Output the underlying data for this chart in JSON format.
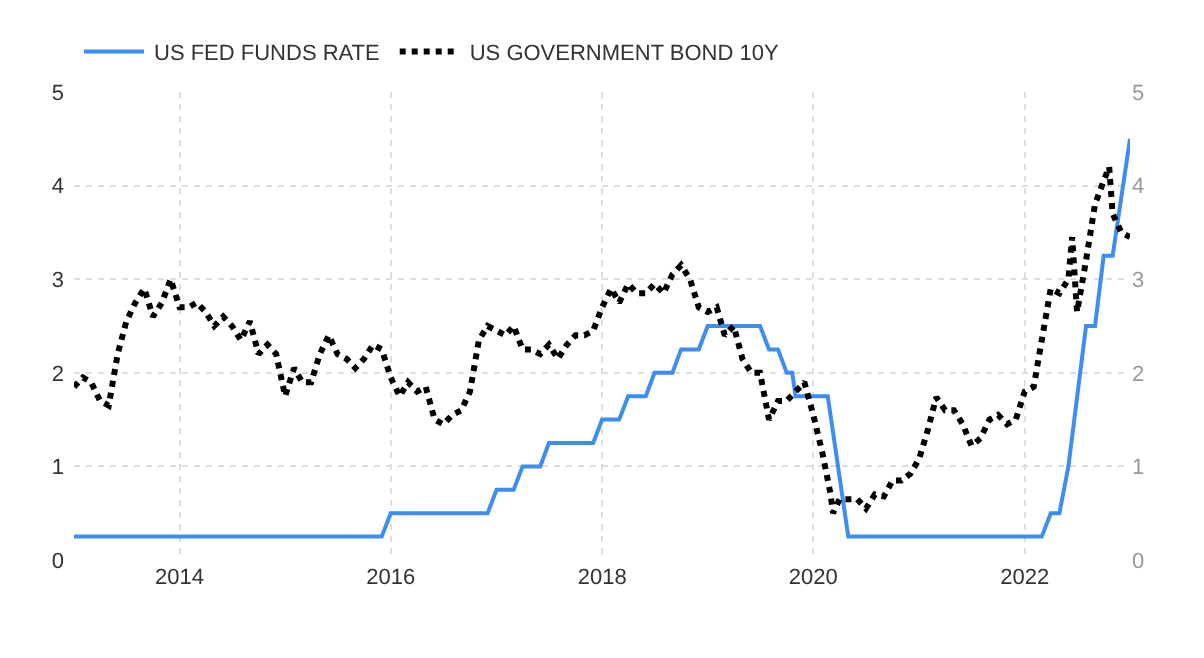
{
  "chart_data": {
    "type": "line",
    "xlim": [
      "2013-01-01",
      "2022-12-31"
    ],
    "xticks": [
      "2014",
      "2016",
      "2018",
      "2020",
      "2022"
    ],
    "ylim": [
      0,
      5
    ],
    "yticks": [
      0,
      1,
      2,
      3,
      4,
      5
    ],
    "y2lim": [
      0,
      5
    ],
    "y2ticks": [
      0,
      1,
      2,
      3,
      4,
      5
    ],
    "grid": true,
    "legend": "top left",
    "marker": "none",
    "series": [
      {
        "name": "US FED FUNDS RATE",
        "color": "#3d8ef0",
        "line_style": "solid",
        "x": [
          "2013-01-01",
          "2015-12-01",
          "2016-01-01",
          "2016-12-01",
          "2017-01-01",
          "2017-03-01",
          "2017-04-01",
          "2017-06-01",
          "2017-07-01",
          "2017-12-01",
          "2018-01-01",
          "2018-03-01",
          "2018-04-01",
          "2018-06-01",
          "2018-07-01",
          "2018-09-01",
          "2018-10-01",
          "2018-12-01",
          "2019-01-01",
          "2019-07-01",
          "2019-08-01",
          "2019-09-01",
          "2019-10-01",
          "2019-10-20",
          "2019-11-01",
          "2020-02-20",
          "2020-05-01",
          "2022-03-01",
          "2022-04-01",
          "2022-05-01",
          "2022-06-01",
          "2022-08-01",
          "2022-09-01",
          "2022-10-01",
          "2022-11-01",
          "2022-12-31"
        ],
        "values": [
          0.25,
          0.25,
          0.5,
          0.5,
          0.75,
          0.75,
          1.0,
          1.0,
          1.25,
          1.25,
          1.5,
          1.5,
          1.75,
          1.75,
          2.0,
          2.0,
          2.25,
          2.25,
          2.5,
          2.5,
          2.25,
          2.25,
          2.0,
          2.0,
          1.75,
          1.75,
          0.25,
          0.25,
          0.5,
          0.5,
          1.0,
          2.5,
          2.5,
          3.25,
          3.25,
          4.5
        ]
      },
      {
        "name": "US GOVERNMENT BOND 10Y",
        "color": "#000000",
        "line_style": "dotted",
        "x": [
          "2013-01-01",
          "2013-02-01",
          "2013-03-01",
          "2013-04-01",
          "2013-05-01",
          "2013-06-01",
          "2013-07-01",
          "2013-08-01",
          "2013-09-01",
          "2013-10-01",
          "2013-11-01",
          "2013-12-01",
          "2014-01-01",
          "2014-02-01",
          "2014-03-01",
          "2014-04-01",
          "2014-05-01",
          "2014-06-01",
          "2014-07-01",
          "2014-08-01",
          "2014-09-01",
          "2014-10-01",
          "2014-11-01",
          "2014-12-01",
          "2015-01-01",
          "2015-02-01",
          "2015-03-01",
          "2015-04-01",
          "2015-05-01",
          "2015-06-01",
          "2015-07-01",
          "2015-08-01",
          "2015-09-01",
          "2015-10-01",
          "2015-11-01",
          "2015-12-01",
          "2016-01-01",
          "2016-02-01",
          "2016-03-01",
          "2016-04-01",
          "2016-05-01",
          "2016-06-01",
          "2016-07-01",
          "2016-08-01",
          "2016-09-01",
          "2016-10-01",
          "2016-11-01",
          "2016-12-01",
          "2017-01-01",
          "2017-02-01",
          "2017-03-01",
          "2017-04-01",
          "2017-05-01",
          "2017-06-01",
          "2017-07-01",
          "2017-08-01",
          "2017-09-01",
          "2017-10-01",
          "2017-11-01",
          "2017-12-01",
          "2018-01-01",
          "2018-02-01",
          "2018-03-01",
          "2018-04-01",
          "2018-05-01",
          "2018-06-01",
          "2018-07-01",
          "2018-08-01",
          "2018-09-01",
          "2018-10-01",
          "2018-11-01",
          "2018-12-01",
          "2019-01-01",
          "2019-02-01",
          "2019-03-01",
          "2019-04-01",
          "2019-05-01",
          "2019-06-01",
          "2019-07-01",
          "2019-08-01",
          "2019-09-01",
          "2019-10-01",
          "2019-11-01",
          "2019-12-01",
          "2020-01-01",
          "2020-02-01",
          "2020-03-01",
          "2020-03-09",
          "2020-04-01",
          "2020-05-01",
          "2020-06-01",
          "2020-07-01",
          "2020-08-01",
          "2020-09-01",
          "2020-10-01",
          "2020-11-01",
          "2020-12-01",
          "2021-01-01",
          "2021-02-01",
          "2021-03-01",
          "2021-04-01",
          "2021-05-01",
          "2021-06-01",
          "2021-07-01",
          "2021-08-01",
          "2021-09-01",
          "2021-10-01",
          "2021-11-01",
          "2021-12-01",
          "2022-01-01",
          "2022-02-01",
          "2022-03-01",
          "2022-04-01",
          "2022-05-01",
          "2022-06-01",
          "2022-06-14",
          "2022-07-01",
          "2022-08-01",
          "2022-09-01",
          "2022-10-01",
          "2022-10-20",
          "2022-11-01",
          "2022-12-01",
          "2022-12-31"
        ],
        "values": [
          1.85,
          1.95,
          1.9,
          1.7,
          1.65,
          2.2,
          2.55,
          2.75,
          2.9,
          2.6,
          2.75,
          3.0,
          2.7,
          2.7,
          2.75,
          2.65,
          2.5,
          2.6,
          2.5,
          2.35,
          2.55,
          2.2,
          2.3,
          2.2,
          1.75,
          2.05,
          1.9,
          1.9,
          2.2,
          2.4,
          2.2,
          2.15,
          2.05,
          2.15,
          2.3,
          2.25,
          1.95,
          1.75,
          1.9,
          1.8,
          1.85,
          1.5,
          1.45,
          1.55,
          1.6,
          1.8,
          2.35,
          2.5,
          2.45,
          2.4,
          2.5,
          2.25,
          2.25,
          2.2,
          2.3,
          2.15,
          2.3,
          2.4,
          2.4,
          2.45,
          2.7,
          2.9,
          2.75,
          2.95,
          2.85,
          2.85,
          2.95,
          2.85,
          3.05,
          3.15,
          3.0,
          2.7,
          2.65,
          2.7,
          2.4,
          2.5,
          2.15,
          2.0,
          2.0,
          1.5,
          1.7,
          1.7,
          1.8,
          1.9,
          1.55,
          1.15,
          0.7,
          0.5,
          0.65,
          0.65,
          0.65,
          0.55,
          0.7,
          0.68,
          0.85,
          0.85,
          0.92,
          1.08,
          1.4,
          1.74,
          1.6,
          1.6,
          1.45,
          1.22,
          1.3,
          1.5,
          1.55,
          1.45,
          1.5,
          1.8,
          1.85,
          2.35,
          2.9,
          2.85,
          3.0,
          3.45,
          2.65,
          3.2,
          3.8,
          4.05,
          4.2,
          3.7,
          3.5,
          3.45
        ]
      }
    ]
  }
}
